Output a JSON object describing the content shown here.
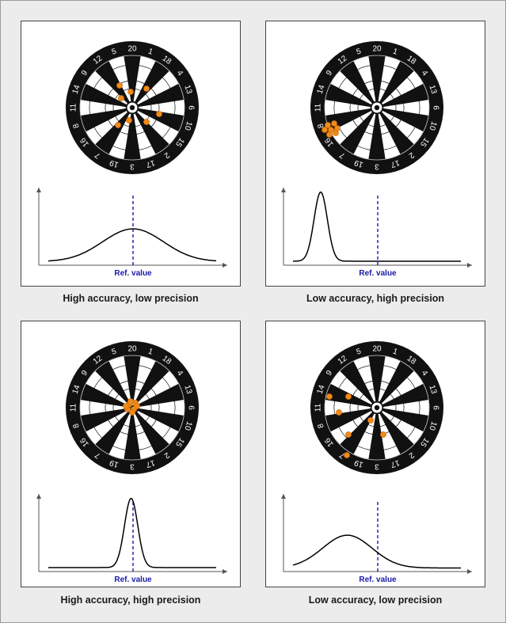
{
  "board_numbers": [
    "20",
    "1",
    "18",
    "4",
    "13",
    "6",
    "10",
    "15",
    "2",
    "17",
    "3",
    "19",
    "7",
    "16",
    "8",
    "11",
    "14",
    "9",
    "12",
    "5"
  ],
  "colors": {
    "board_dark": "#111111",
    "board_light": "#ffffff",
    "dart": "#f08a1a",
    "ref_line": "#1a1aa8",
    "ref_label": "#1a1aa8",
    "curve": "#000000"
  },
  "panels": [
    {
      "caption": "High accuracy, low precision",
      "ref_label": "Ref. value",
      "ref_pos": 0.5,
      "curve": {
        "mean": 0.5,
        "sd": 0.16,
        "peak": 0.45
      }
    },
    {
      "caption": "Low accuracy, high precision",
      "ref_label": "Ref. value",
      "ref_pos": 0.5,
      "curve": {
        "mean": 0.2,
        "sd": 0.035,
        "peak": 0.95
      }
    },
    {
      "caption": "High accuracy, high precision",
      "ref_label": "Ref. value",
      "ref_pos": 0.5,
      "curve": {
        "mean": 0.49,
        "sd": 0.035,
        "peak": 0.95
      }
    },
    {
      "caption": "Low accuracy, low precision",
      "ref_label": "Ref. value",
      "ref_pos": 0.5,
      "curve": {
        "mean": 0.34,
        "sd": 0.13,
        "peak": 0.45
      }
    }
  ]
}
